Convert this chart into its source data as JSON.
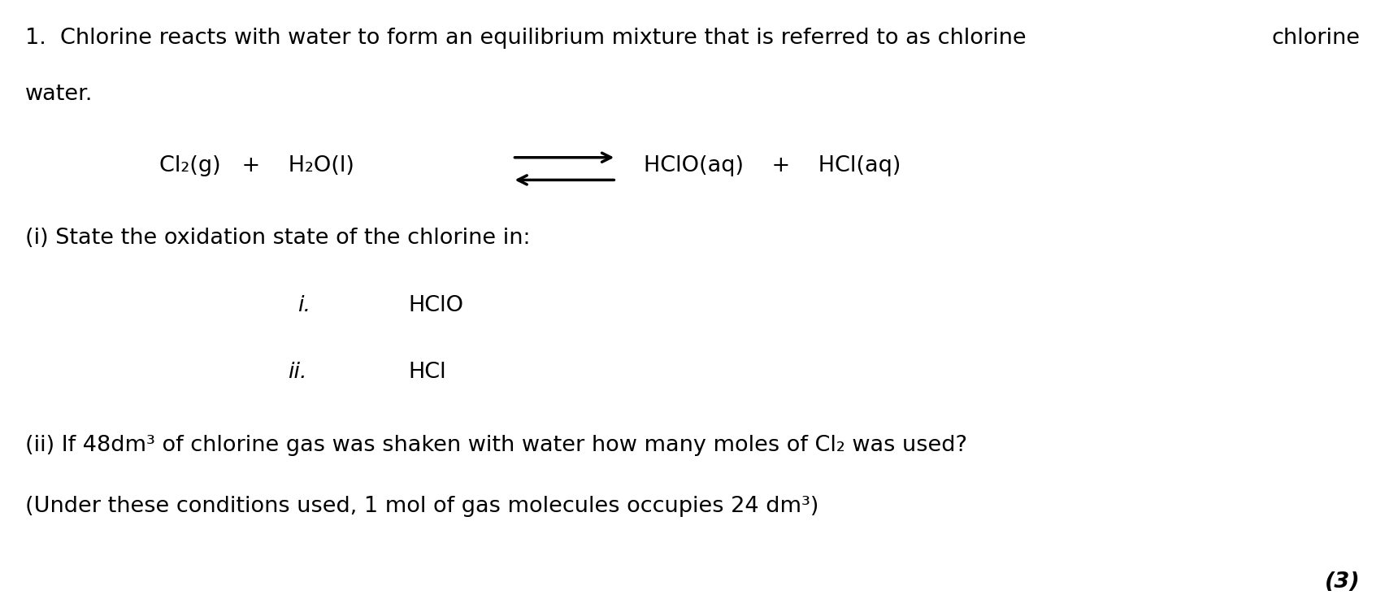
{
  "background_color": "#ffffff",
  "text_color": "#000000",
  "figsize": [
    17.04,
    7.48
  ],
  "dpi": 100,
  "title_line1": "1.  Chlorine reacts with water to form an equilibrium mixture that is referred to as chlorine",
  "title_line2": "water.",
  "reactants": "Cl₂(g)   +    H₂O(l)",
  "products": "HClO(aq)    +    HCl(aq)",
  "question_i_header": "(i) State the oxidation state of the chlorine in:",
  "item_i": "i.",
  "item_i_text": "HClO",
  "item_ii": "ii.",
  "item_ii_text": "HCl",
  "question_ii_line1": "(ii) If 48dm³ of chlorine gas was shaken with water how many moles of Cl₂ was used?",
  "question_ii_line2": "(Under these conditions used, 1 mol of gas molecules occupies 24 dm³)",
  "marks": "(3)",
  "font_size_main": 19.5,
  "font_size_marks": 19.5
}
